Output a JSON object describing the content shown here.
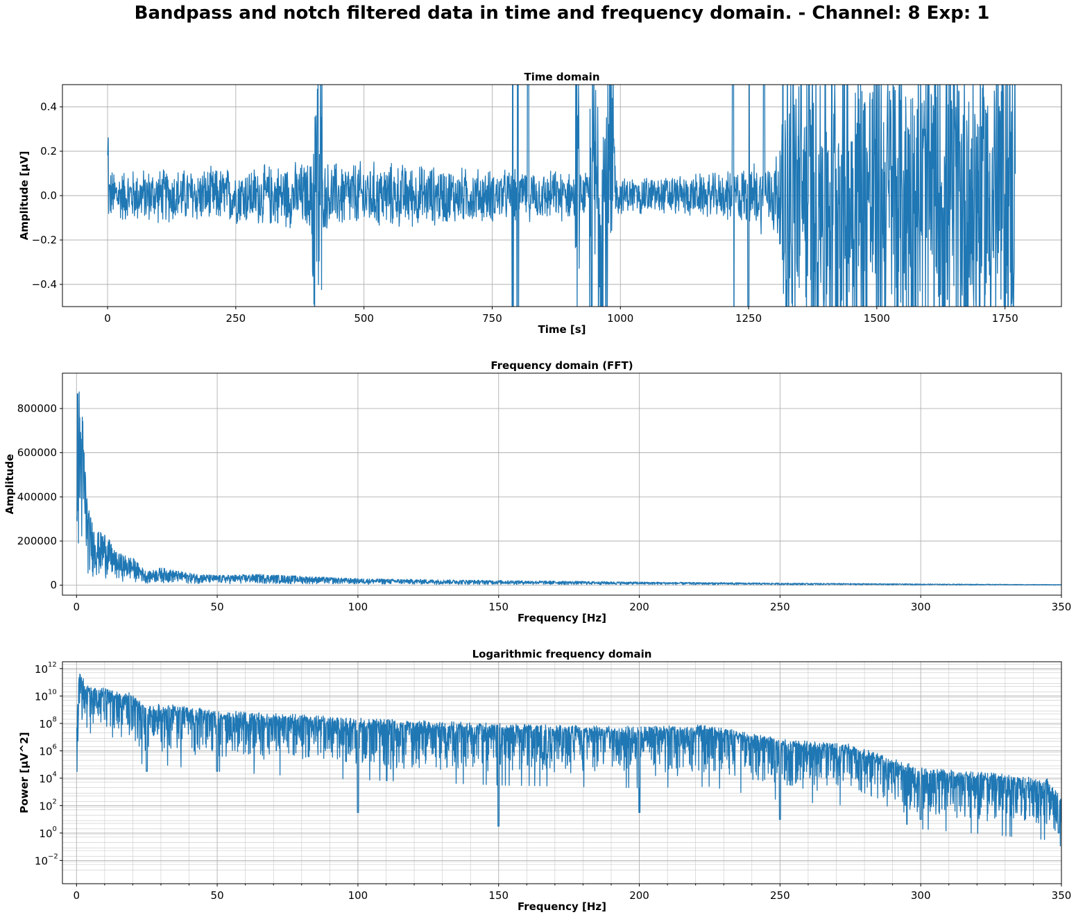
{
  "figure": {
    "suptitle": "Bandpass and notch filtered data in time and frequency domain.  - Channel: 8 Exp: 1"
  },
  "colors": {
    "series": "#1f77b4",
    "grid": "#b0b0b0"
  },
  "chart_data": [
    {
      "type": "line",
      "title": "Time domain",
      "xlabel": "Time [s]",
      "ylabel": "Amplitude [µV]",
      "xlim": [
        -88,
        1860
      ],
      "ylim": [
        -0.5,
        0.5
      ],
      "xticks": [
        0,
        250,
        500,
        750,
        1000,
        1250,
        1500,
        1750
      ],
      "xtick_labels": [
        "0",
        "250",
        "500",
        "750",
        "1000",
        "1250",
        "1500",
        "1750"
      ],
      "yticks": [
        -0.4,
        -0.2,
        0.0,
        0.2,
        0.4
      ],
      "ytick_labels": [
        "−0.4",
        "−0.2",
        "0.0",
        "0.2",
        "0.4"
      ],
      "grid": true,
      "series": [
        {
          "envelope": [
            [
              0,
              0.13
            ],
            [
              250,
              0.14
            ],
            [
              400,
              0.17
            ],
            [
              500,
              0.17
            ],
            [
              750,
              0.13
            ],
            [
              900,
              0.12
            ],
            [
              1000,
              0.09
            ],
            [
              1200,
              0.11
            ],
            [
              1300,
              0.2
            ],
            [
              1320,
              0.45
            ],
            [
              1500,
              0.5
            ],
            [
              1600,
              0.4
            ],
            [
              1700,
              0.3
            ],
            [
              1770,
              0.3
            ]
          ],
          "bursts": [
            [
              0,
              2
            ],
            [
              398,
              418
            ],
            [
              912,
              920
            ],
            [
              940,
              990
            ],
            [
              1315,
              1770
            ]
          ],
          "spikes": [
            790,
            800,
            820,
            1220,
            1250,
            1280
          ]
        }
      ]
    },
    {
      "type": "line",
      "title": "Frequency domain (FFT)",
      "xlabel": "Frequency [Hz]",
      "ylabel": "Amplitude",
      "xlim": [
        -5,
        350
      ],
      "ylim": [
        -45000,
        960000
      ],
      "xticks": [
        0,
        50,
        100,
        150,
        200,
        250,
        300,
        350
      ],
      "xtick_labels": [
        "0",
        "50",
        "100",
        "150",
        "200",
        "250",
        "300",
        "350"
      ],
      "yticks": [
        0,
        200000,
        400000,
        600000,
        800000
      ],
      "ytick_labels": [
        "0",
        "200000",
        "400000",
        "600000",
        "800000"
      ],
      "grid": true,
      "series": [
        {
          "peaks": [
            [
              1,
              910000
            ],
            [
              2,
              820000
            ],
            [
              3,
              610000
            ],
            [
              4,
              360000
            ],
            [
              6,
              280000
            ],
            [
              8,
              240000
            ],
            [
              10,
              245000
            ],
            [
              14,
              150000
            ],
            [
              20,
              125000
            ],
            [
              25,
              60000
            ],
            [
              30,
              80000
            ],
            [
              40,
              55000
            ],
            [
              50,
              45000
            ],
            [
              65,
              50000
            ],
            [
              100,
              30000
            ],
            [
              150,
              22000
            ],
            [
              200,
              15000
            ],
            [
              250,
              10000
            ],
            [
              300,
              6000
            ],
            [
              350,
              3000
            ]
          ]
        }
      ]
    },
    {
      "type": "line",
      "title": "Logarithmic frequency domain",
      "xlabel": "Frequency [Hz]",
      "ylabel": "Power [µV^2]",
      "yscale": "log",
      "xlim": [
        -5,
        350
      ],
      "ylim": [
        -3.7,
        12.5
      ],
      "xticks": [
        0,
        50,
        100,
        150,
        200,
        250,
        300,
        350
      ],
      "xtick_labels": [
        "0",
        "50",
        "100",
        "150",
        "200",
        "250",
        "300",
        "350"
      ],
      "yticks": [
        -2,
        0,
        2,
        4,
        6,
        8,
        10,
        12
      ],
      "ytick_base": "10",
      "ytick_exponents": [
        "−2",
        "0",
        "2",
        "4",
        "6",
        "8",
        "10",
        "12"
      ],
      "grid": true,
      "minor_grid": true,
      "series": [
        {
          "upper_log10_envelope": [
            [
              0,
              8.3
            ],
            [
              1,
              11.8
            ],
            [
              5,
              10.7
            ],
            [
              10,
              10.6
            ],
            [
              20,
              10.2
            ],
            [
              25,
              9.2
            ],
            [
              30,
              9.5
            ],
            [
              50,
              9.0
            ],
            [
              75,
              8.7
            ],
            [
              100,
              8.4
            ],
            [
              150,
              8.0
            ],
            [
              200,
              7.8
            ],
            [
              225,
              7.9
            ],
            [
              250,
              6.9
            ],
            [
              275,
              6.5
            ],
            [
              300,
              4.8
            ],
            [
              325,
              4.4
            ],
            [
              345,
              4.0
            ],
            [
              350,
              2.5
            ]
          ],
          "dips": [
            [
              25,
              4.5
            ],
            [
              50,
              4.5
            ],
            [
              100,
              1.5
            ],
            [
              150,
              0.5
            ],
            [
              200,
              1.5
            ],
            [
              250,
              1.0
            ],
            [
              300,
              1.0
            ],
            [
              349,
              0.0
            ]
          ]
        }
      ]
    }
  ]
}
